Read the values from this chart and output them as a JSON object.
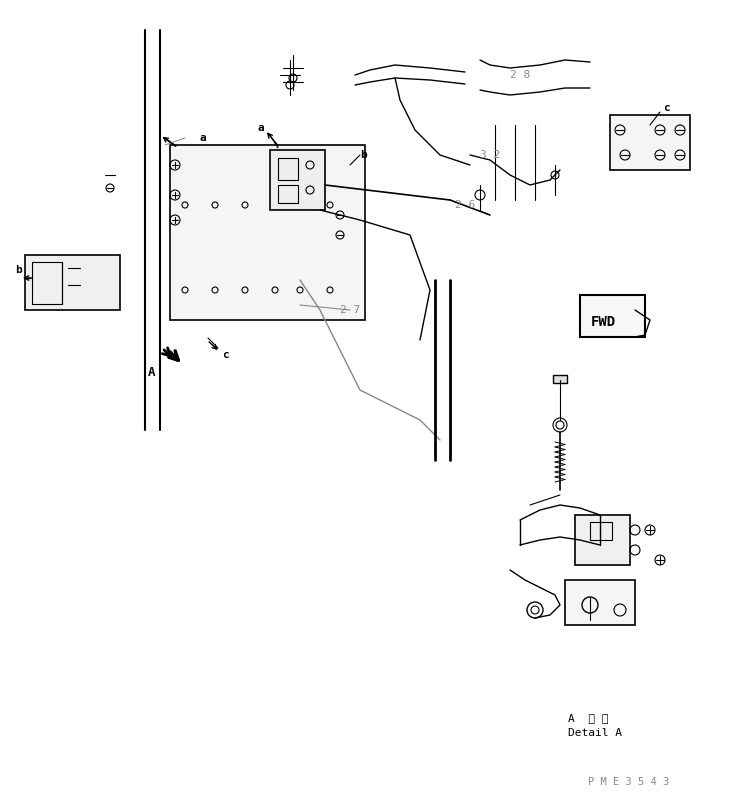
{
  "bg_color": "#ffffff",
  "line_color": "#000000",
  "gray_color": "#888888",
  "light_gray": "#cccccc",
  "fig_width": 7.42,
  "fig_height": 8.01,
  "dpi": 100,
  "labels": {
    "a_left": "a",
    "a_right": "a",
    "b_left": "b",
    "b_right": "b",
    "c_left": "c",
    "c_right": "c",
    "num_26": "2 6",
    "num_27": "2 7",
    "num_28": "2 8",
    "num_32": "3 2",
    "label_A": "A",
    "detail_jp": "A  詳 細",
    "detail_en": "Detail A",
    "part_no": "P M E 3 5 4 3",
    "fwd": "FWD"
  },
  "text_color": "#505050",
  "dark_gray": "#404040"
}
